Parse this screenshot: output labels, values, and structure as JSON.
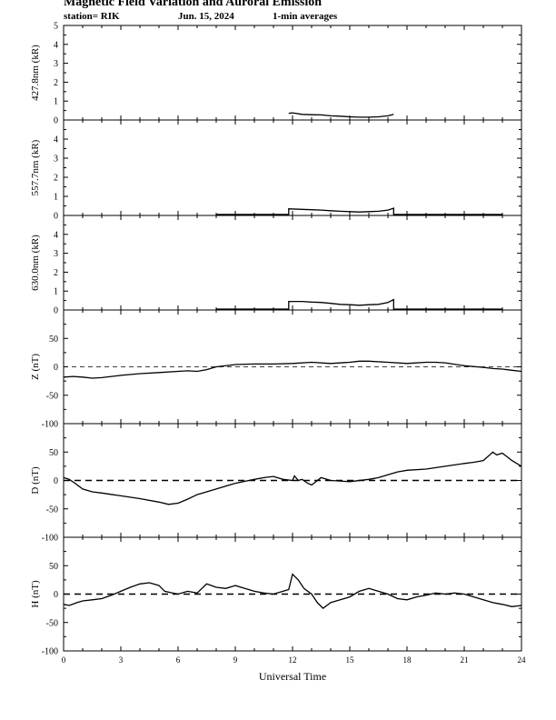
{
  "header": {
    "title": "Magnetic Field Variation and Auroral Emission",
    "station": "station= RIK",
    "date": "Jun. 15, 2024",
    "averaging": "1-min averages"
  },
  "chart_data": [
    {
      "type": "line",
      "ylabel": "427.8nm (kR)",
      "ylim": [
        0,
        5
      ],
      "yticks": [
        0,
        1,
        2,
        3,
        4,
        5
      ],
      "xlim": [
        0,
        24
      ],
      "series": [
        {
          "x": [
            11.8,
            12.0,
            12.5,
            13.0,
            13.5,
            14.0,
            14.5,
            15.0,
            15.5,
            16.0,
            16.5,
            17.0,
            17.3
          ],
          "values": [
            0.35,
            0.38,
            0.3,
            0.28,
            0.27,
            0.22,
            0.2,
            0.17,
            0.15,
            0.15,
            0.17,
            0.22,
            0.3
          ]
        }
      ]
    },
    {
      "type": "line",
      "ylabel": "557.7nm (kR)",
      "ylim": [
        0,
        5
      ],
      "yticks": [
        0,
        1,
        2,
        3,
        4
      ],
      "xlim": [
        0,
        24
      ],
      "series": [
        {
          "x": [
            8.0,
            11.8,
            11.8,
            12.5,
            13.0,
            13.5,
            14.0,
            14.5,
            15.0,
            15.5,
            16.0,
            16.5,
            17.0,
            17.3,
            17.3,
            23.0
          ],
          "values": [
            0.05,
            0.05,
            0.35,
            0.32,
            0.3,
            0.28,
            0.25,
            0.22,
            0.2,
            0.18,
            0.2,
            0.22,
            0.28,
            0.38,
            0.05,
            0.05
          ]
        }
      ]
    },
    {
      "type": "line",
      "ylabel": "630.0nm (kR)",
      "ylim": [
        0,
        5
      ],
      "yticks": [
        0,
        1,
        2,
        3,
        4
      ],
      "xlim": [
        0,
        24
      ],
      "series": [
        {
          "x": [
            8.0,
            11.8,
            11.8,
            12.5,
            13.0,
            13.5,
            14.0,
            14.5,
            15.0,
            15.5,
            16.0,
            16.5,
            17.0,
            17.3,
            17.3,
            23.0
          ],
          "values": [
            0.05,
            0.05,
            0.45,
            0.45,
            0.42,
            0.4,
            0.35,
            0.3,
            0.28,
            0.25,
            0.28,
            0.3,
            0.4,
            0.55,
            0.05,
            0.05
          ]
        }
      ]
    },
    {
      "type": "line",
      "ylabel": "Z (nT)",
      "ylim": [
        -100,
        100
      ],
      "yticks": [
        -100,
        -50,
        0,
        50
      ],
      "xlim": [
        0,
        24
      ],
      "zero_line": "thin-dashed",
      "series": [
        {
          "x": [
            0,
            0.5,
            1,
            1.5,
            2,
            3,
            4,
            5,
            6,
            6.5,
            7,
            7.5,
            8,
            9,
            10,
            11,
            12,
            13,
            14,
            15,
            15.5,
            16,
            17,
            18,
            19,
            19.5,
            20,
            21,
            22,
            22.5,
            23,
            23.5,
            24
          ],
          "values": [
            -18,
            -17,
            -18,
            -20,
            -19,
            -15,
            -12,
            -10,
            -8,
            -7,
            -8,
            -5,
            0,
            4,
            5,
            5,
            6,
            8,
            6,
            8,
            10,
            10,
            8,
            6,
            8,
            8,
            7,
            2,
            -1,
            -3,
            -4,
            -6,
            -8
          ]
        }
      ]
    },
    {
      "type": "line",
      "ylabel": "D (nT)",
      "ylim": [
        -100,
        100
      ],
      "yticks": [
        -100,
        -50,
        0,
        50
      ],
      "xlim": [
        0,
        24
      ],
      "zero_line": "dashed",
      "series": [
        {
          "x": [
            0,
            0.3,
            0.6,
            1,
            1.5,
            2,
            3,
            4,
            5,
            5.5,
            6,
            6.5,
            7,
            8,
            9,
            10,
            10.5,
            11,
            11.5,
            12,
            12.1,
            12.3,
            12.5,
            12.8,
            13,
            13.5,
            14,
            15,
            16,
            16.5,
            17,
            17.5,
            18,
            19,
            20,
            21,
            21.5,
            22,
            22.5,
            22.7,
            23,
            23.5,
            24
          ],
          "values": [
            5,
            2,
            -5,
            -15,
            -20,
            -22,
            -27,
            -32,
            -38,
            -42,
            -40,
            -33,
            -25,
            -15,
            -5,
            2,
            5,
            7,
            2,
            0,
            8,
            0,
            2,
            -5,
            -8,
            5,
            0,
            -2,
            2,
            5,
            10,
            15,
            18,
            20,
            25,
            30,
            32,
            35,
            50,
            45,
            48,
            35,
            25
          ]
        }
      ]
    },
    {
      "type": "line",
      "ylabel": "H (nT)",
      "ylim": [
        -100,
        100
      ],
      "yticks": [
        -100,
        -50,
        0,
        50
      ],
      "xlim": [
        0,
        24
      ],
      "zero_line": "dashed",
      "series": [
        {
          "x": [
            0,
            0.3,
            0.7,
            1,
            1.5,
            2,
            2.5,
            3,
            3.5,
            4,
            4.5,
            5,
            5.3,
            5.7,
            6,
            6.5,
            7,
            7.5,
            8,
            8.5,
            9,
            9.5,
            10,
            10.5,
            11,
            11.5,
            11.8,
            12,
            12.3,
            12.6,
            13,
            13.3,
            13.6,
            14,
            14.5,
            15,
            15.5,
            16,
            16.5,
            17,
            17.5,
            18,
            18.5,
            19,
            19.5,
            20,
            20.5,
            21,
            21.5,
            22,
            22.5,
            23,
            23.5,
            24
          ],
          "values": [
            -18,
            -20,
            -15,
            -12,
            -10,
            -8,
            -2,
            5,
            12,
            18,
            20,
            15,
            5,
            2,
            0,
            5,
            2,
            18,
            12,
            10,
            15,
            10,
            5,
            2,
            0,
            5,
            8,
            35,
            25,
            10,
            0,
            -15,
            -25,
            -15,
            -10,
            -5,
            5,
            10,
            5,
            0,
            -8,
            -10,
            -5,
            -2,
            2,
            0,
            2,
            0,
            -5,
            -10,
            -15,
            -18,
            -22,
            -20
          ]
        }
      ]
    }
  ],
  "x_axis": {
    "label": "Universal Time",
    "tick_labels": [
      "0",
      "3",
      "6",
      "9",
      "12",
      "15",
      "18",
      "21",
      "24"
    ]
  }
}
